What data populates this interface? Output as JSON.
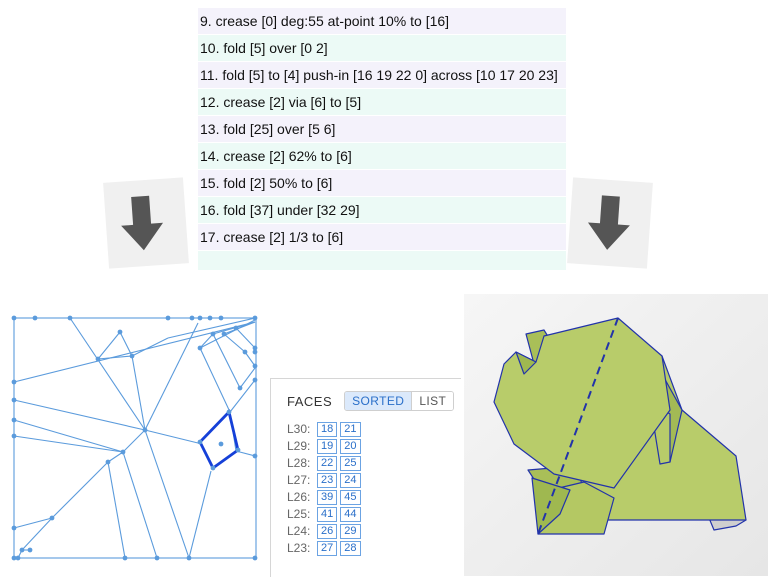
{
  "steps": [
    {
      "text": "9. crease [0] deg:55 at-point 10% to [16]"
    },
    {
      "text": "10. fold [5] over [0 2]"
    },
    {
      "text": "11. fold [5] to [4] push-in [16 19 22 0] across [10 17 20 23]"
    },
    {
      "text": "12. crease [2] via [6] to [5]"
    },
    {
      "text": "13. fold [25] over [5 6]"
    },
    {
      "text": "14. crease [2] 62% to [6]"
    },
    {
      "text": "15. fold [2] 50% to [6]"
    },
    {
      "text": "16. fold [37] under [32 29]"
    },
    {
      "text": "17. crease [2] 1/3 to [6]"
    },
    {
      "text": ""
    }
  ],
  "faces_panel": {
    "title": "FACES",
    "tab_sorted": "SORTED",
    "tab_list": "LIST",
    "layers": [
      {
        "label": "L30:",
        "faces": [
          "18",
          "21"
        ]
      },
      {
        "label": "L29:",
        "faces": [
          "19",
          "20"
        ]
      },
      {
        "label": "L28:",
        "faces": [
          "22",
          "25"
        ]
      },
      {
        "label": "L27:",
        "faces": [
          "23",
          "24"
        ]
      },
      {
        "label": "L26:",
        "faces": [
          "39",
          "45"
        ]
      },
      {
        "label": "L25:",
        "faces": [
          "41",
          "44"
        ]
      },
      {
        "label": "L24:",
        "faces": [
          "26",
          "29"
        ]
      },
      {
        "label": "L23:",
        "faces": [
          "27",
          "28"
        ]
      }
    ]
  },
  "icons": {
    "left_arrow": "arrow-down-icon",
    "right_arrow": "arrow-down-icon"
  },
  "colors": {
    "crease_line": "#5b9bdc",
    "selected_face": "#1540d8",
    "paper": "#b8cc6a",
    "row_odd": "#f4f2fb",
    "row_even": "#ecfaf6"
  }
}
